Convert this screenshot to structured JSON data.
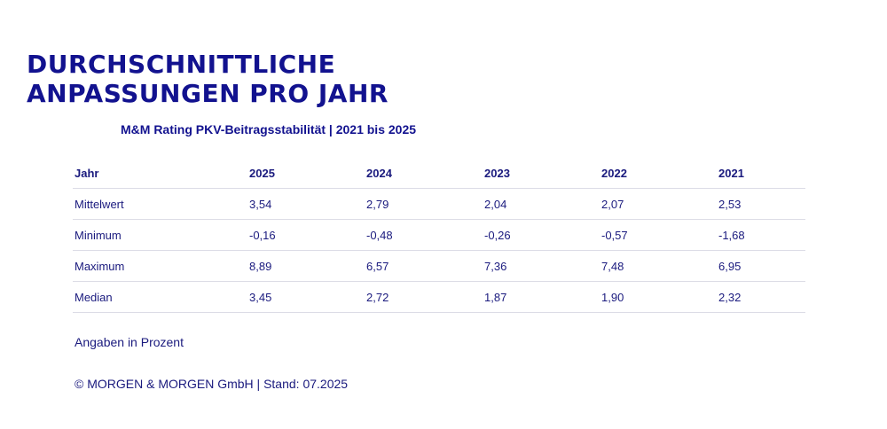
{
  "title_line1": "DURCHSCHNITTLICHE",
  "title_line2": "ANPASSUNGEN PRO JAHR",
  "subtitle": "M&M Rating PKV-Beitragsstabilität | 2021 bis 2025",
  "table": {
    "headers": [
      "Jahr",
      "2025",
      "2024",
      "2023",
      "2022",
      "2021"
    ],
    "rows": [
      [
        "Mittelwert",
        "3,54",
        "2,79",
        "2,04",
        "2,07",
        "2,53"
      ],
      [
        "Minimum",
        "-0,16",
        "-0,48",
        "-0,26",
        "-0,57",
        "-1,68"
      ],
      [
        "Maximum",
        "8,89",
        "6,57",
        "7,36",
        "7,48",
        "6,95"
      ],
      [
        "Median",
        "3,45",
        "2,72",
        "1,87",
        "1,90",
        "2,32"
      ]
    ]
  },
  "note": "Angaben in Prozent",
  "footer": "© MORGEN & MORGEN GmbH | Stand: 07.2025",
  "colors": {
    "primary": "#12128f",
    "text": "#1a1a7e",
    "divider": "#dcdce6"
  }
}
